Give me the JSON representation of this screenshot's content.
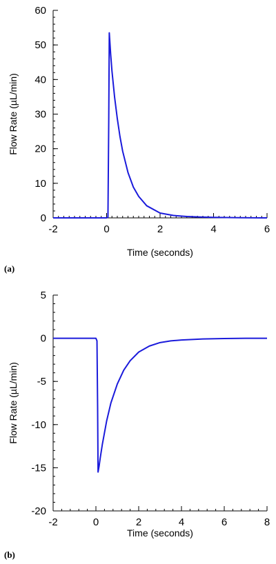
{
  "chart_data": [
    {
      "panel": "(a)",
      "type": "line",
      "xlabel": "Time (seconds)",
      "ylabel": "Flow Rate (µL/min)",
      "xlim": [
        -2,
        6
      ],
      "ylim": [
        0,
        60
      ],
      "xticks": [
        -2,
        0,
        2,
        4,
        6
      ],
      "yticks": [
        0,
        10,
        20,
        30,
        40,
        50,
        60
      ],
      "xminor_step": 0.2,
      "yminor_step": 2,
      "grid": false,
      "line_color": "#1a1adb",
      "series": [
        {
          "x": [
            -2,
            -1,
            0,
            0.05,
            0.08,
            0.1,
            0.15,
            0.2,
            0.3,
            0.4,
            0.5,
            0.6,
            0.8,
            1.0,
            1.2,
            1.5,
            2.0,
            2.5,
            3.0,
            3.5,
            4.0,
            5.0,
            6.0
          ],
          "y": [
            0,
            0,
            0,
            0.2,
            28,
            53.5,
            47.5,
            42.5,
            34.8,
            28.7,
            23.5,
            19.3,
            13.1,
            8.9,
            6.2,
            3.5,
            1.4,
            0.7,
            0.4,
            0.25,
            0.15,
            0.05,
            0
          ]
        }
      ]
    },
    {
      "panel": "(b)",
      "type": "line",
      "xlabel": "Time (seconds)",
      "ylabel": "Flow Rate (µL/min)",
      "xlim": [
        -2,
        8
      ],
      "ylim": [
        -20,
        5
      ],
      "xticks": [
        -2,
        0,
        2,
        4,
        6,
        8
      ],
      "yticks": [
        -20,
        -15,
        -10,
        -5,
        0,
        5
      ],
      "xminor_step": 0.4,
      "yminor_step": 1,
      "grid": false,
      "line_color": "#1a1adb",
      "series": [
        {
          "x": [
            -2,
            -1,
            0,
            0.05,
            0.08,
            0.1,
            0.15,
            0.2,
            0.3,
            0.5,
            0.7,
            1.0,
            1.3,
            1.6,
            2.0,
            2.5,
            3.0,
            3.5,
            4.0,
            5.0,
            6.0,
            7.0,
            8.0
          ],
          "y": [
            0,
            0,
            0,
            -0.3,
            -8,
            -15.5,
            -14.8,
            -13.9,
            -12.3,
            -9.6,
            -7.5,
            -5.3,
            -3.7,
            -2.6,
            -1.6,
            -0.9,
            -0.5,
            -0.3,
            -0.2,
            -0.08,
            -0.03,
            0,
            0
          ]
        }
      ]
    }
  ]
}
